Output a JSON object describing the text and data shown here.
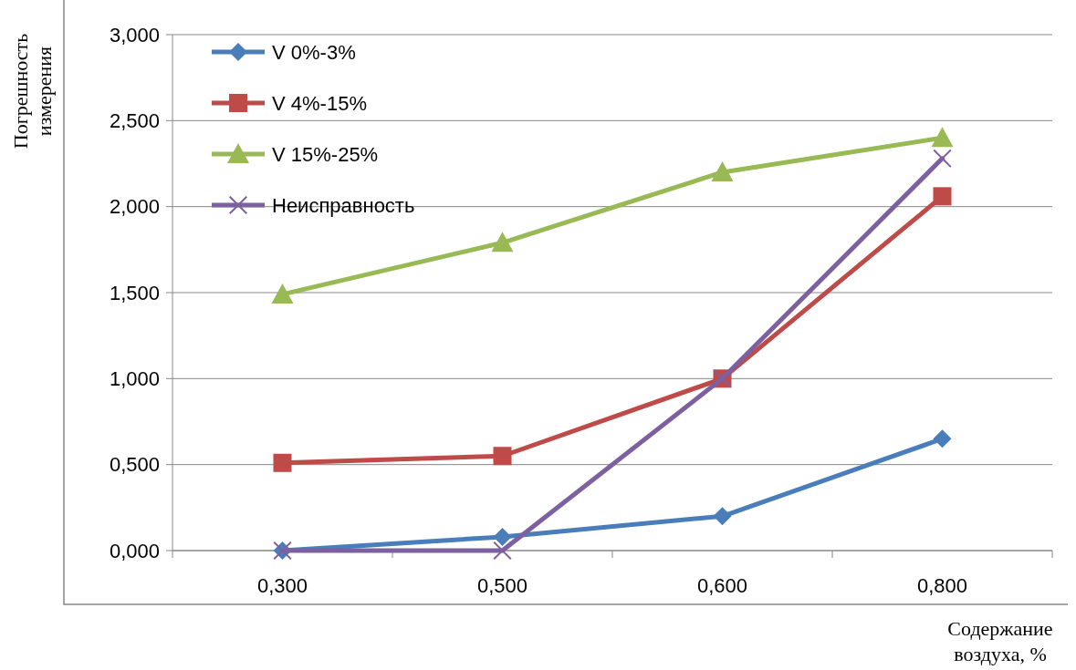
{
  "chart_data": {
    "type": "line",
    "xlabel": "Содержание воздуха, %",
    "ylabel": "Погрешность измерения",
    "categories": [
      "0,300",
      "0,500",
      "0,600",
      "0,800"
    ],
    "series": [
      {
        "name": "V 0%-3%",
        "color": "#4a7ebb",
        "marker": "diamond",
        "values": [
          0,
          0.08,
          0.2,
          0.65
        ]
      },
      {
        "name": "V 4%-15%",
        "color": "#be4b48",
        "marker": "square",
        "values": [
          0.51,
          0.55,
          1.0,
          2.06
        ]
      },
      {
        "name": "V 15%-25%",
        "color": "#98b954",
        "marker": "triangle",
        "values": [
          1.49,
          1.79,
          2.2,
          2.4
        ]
      },
      {
        "name": "Неисправность",
        "color": "#7d60a0",
        "marker": "cross",
        "values": [
          0,
          0,
          1.0,
          2.28
        ]
      }
    ],
    "ylim": [
      0,
      3
    ],
    "yticks": [
      {
        "value": 0,
        "label": "0,000"
      },
      {
        "value": 0.5,
        "label": "0,500"
      },
      {
        "value": 1,
        "label": "1,000"
      },
      {
        "value": 1.5,
        "label": "1,500"
      },
      {
        "value": 2,
        "label": "2,000"
      },
      {
        "value": 2.5,
        "label": "2,500"
      },
      {
        "value": 3,
        "label": "3,000"
      }
    ],
    "grid": "y",
    "legend": "top left",
    "line_style": "solid"
  }
}
